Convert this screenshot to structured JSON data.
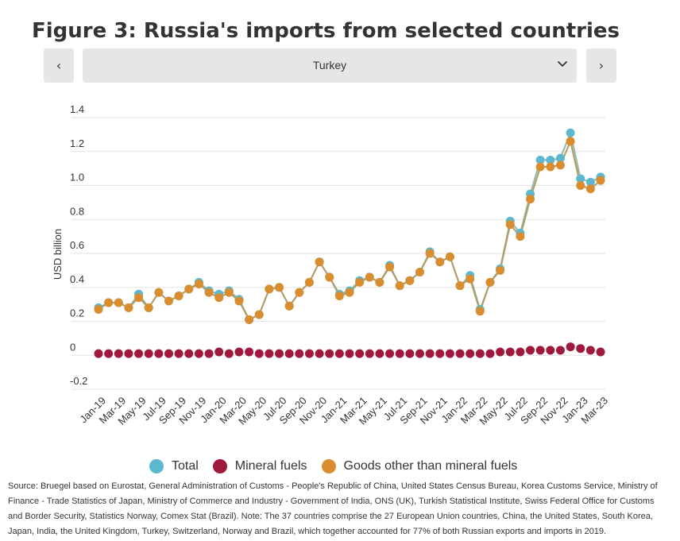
{
  "chart_data": {
    "type": "scatter",
    "title": "Figure 3: Russia's imports from selected countries",
    "ylabel": "USD billion",
    "xlabel": "",
    "ylim": [
      -0.2,
      1.4
    ],
    "yticks": [
      "1.4",
      "1.2",
      "1.0",
      "0.8",
      "0.6",
      "0.4",
      "0.2",
      "0",
      "-0.2"
    ],
    "ytick_values": [
      1.4,
      1.2,
      1.0,
      0.8,
      0.6,
      0.4,
      0.2,
      0,
      -0.2
    ],
    "grid": true,
    "legend_position": "bottom",
    "x": [
      "Jan-19",
      "Feb-19",
      "Mar-19",
      "Apr-19",
      "May-19",
      "Jun-19",
      "Jul-19",
      "Aug-19",
      "Sep-19",
      "Oct-19",
      "Nov-19",
      "Dec-19",
      "Jan-20",
      "Feb-20",
      "Mar-20",
      "Apr-20",
      "May-20",
      "Jun-20",
      "Jul-20",
      "Aug-20",
      "Sep-20",
      "Oct-20",
      "Nov-20",
      "Dec-20",
      "Jan-21",
      "Feb-21",
      "Mar-21",
      "Apr-21",
      "May-21",
      "Jun-21",
      "Jul-21",
      "Aug-21",
      "Sep-21",
      "Oct-21",
      "Nov-21",
      "Dec-21",
      "Jan-22",
      "Feb-22",
      "Mar-22",
      "Apr-22",
      "May-22",
      "Jun-22",
      "Jul-22",
      "Aug-22",
      "Sep-22",
      "Oct-22",
      "Nov-22",
      "Dec-22",
      "Jan-23",
      "Feb-23",
      "Mar-23"
    ],
    "xtick_labels": [
      "Jan-19",
      "Mar-19",
      "May-19",
      "Jul-19",
      "Sep-19",
      "Nov-19",
      "Jan-20",
      "Mar-20",
      "May-20",
      "Jul-20",
      "Sep-20",
      "Nov-20",
      "Jan-21",
      "Mar-21",
      "May-21",
      "Jul-21",
      "Sep-21",
      "Nov-21",
      "Jan-22",
      "Mar-22",
      "May-22",
      "Jul-22",
      "Sep-22",
      "Nov-22",
      "Jan-23",
      "Mar-23"
    ],
    "series": [
      {
        "name": "Total",
        "color": "#5bb8cf",
        "values": [
          0.28,
          0.31,
          0.31,
          0.28,
          0.36,
          0.28,
          0.37,
          0.32,
          0.35,
          0.39,
          0.43,
          0.38,
          0.36,
          0.38,
          0.33,
          0.21,
          0.24,
          0.39,
          0.4,
          0.29,
          0.37,
          0.43,
          0.55,
          0.46,
          0.36,
          0.38,
          0.44,
          0.46,
          0.43,
          0.53,
          0.41,
          0.44,
          0.49,
          0.61,
          0.55,
          0.58,
          0.41,
          0.47,
          0.27,
          0.43,
          0.51,
          0.79,
          0.72,
          0.95,
          1.15,
          1.15,
          1.16,
          1.31,
          1.04,
          1.02,
          1.05
        ]
      },
      {
        "name": "Mineral fuels",
        "color": "#a0193d",
        "values": [
          0.01,
          0.01,
          0.01,
          0.01,
          0.01,
          0.01,
          0.01,
          0.01,
          0.01,
          0.01,
          0.01,
          0.01,
          0.02,
          0.01,
          0.02,
          0.02,
          0.01,
          0.01,
          0.01,
          0.01,
          0.01,
          0.01,
          0.01,
          0.01,
          0.01,
          0.01,
          0.01,
          0.01,
          0.01,
          0.01,
          0.01,
          0.01,
          0.01,
          0.01,
          0.01,
          0.01,
          0.01,
          0.01,
          0.01,
          0.01,
          0.02,
          0.02,
          0.02,
          0.03,
          0.03,
          0.03,
          0.03,
          0.05,
          0.04,
          0.03,
          0.02
        ]
      },
      {
        "name": "Goods other than mineral fuels",
        "color": "#d98d2f",
        "values": [
          0.27,
          0.31,
          0.31,
          0.28,
          0.34,
          0.28,
          0.37,
          0.32,
          0.35,
          0.39,
          0.42,
          0.37,
          0.34,
          0.37,
          0.32,
          0.21,
          0.24,
          0.39,
          0.4,
          0.29,
          0.37,
          0.43,
          0.55,
          0.46,
          0.35,
          0.37,
          0.43,
          0.46,
          0.43,
          0.52,
          0.41,
          0.44,
          0.49,
          0.6,
          0.55,
          0.58,
          0.41,
          0.45,
          0.26,
          0.43,
          0.5,
          0.77,
          0.7,
          0.92,
          1.11,
          1.11,
          1.12,
          1.26,
          1.0,
          0.98,
          1.03
        ]
      }
    ]
  },
  "controls": {
    "prev_icon": "‹",
    "next_icon": "›",
    "selected_country": "Turkey",
    "dropdown_icon": "chevron-down-icon"
  },
  "source_text": "Source: Bruegel based on Eurostat, General Administration of Customs - People's Republic of China, United States Census Bureau, Korea Customs Service, Ministry of Finance - Trade Statistics of Japan, Ministry of Commerce and Industry - Government of India, ONS (UK), Turkish Statistical Institute, Swiss Federal Office for Customs and Border Security, Statistics Norway, Comex Stat (Brazil). Note: The 37 countries comprise the 27 European Union countries, China, the United States, South Korea, Japan, India, the United Kingdom, Turkey, Switzerland, Norway and Brazil, which together accounted for 77% of both Russian exports and imports in 2019."
}
